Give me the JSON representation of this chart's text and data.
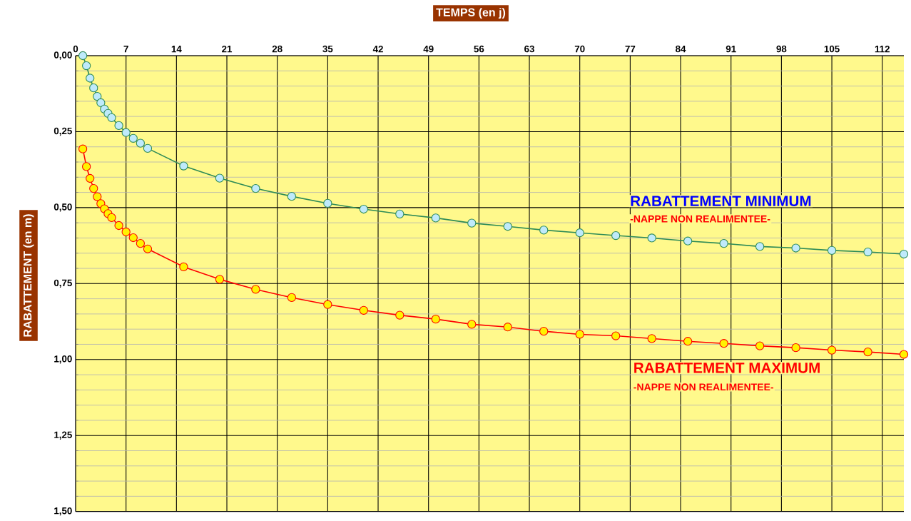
{
  "chart_data": {
    "type": "line",
    "xlabel": "TEMPS (en j)",
    "ylabel": "RABATTEMENT  (en m)",
    "xlim": [
      0,
      115
    ],
    "ylim": [
      1.5,
      0
    ],
    "xticks": [
      0,
      7,
      14,
      21,
      28,
      35,
      42,
      49,
      56,
      63,
      70,
      77,
      84,
      91,
      98,
      105,
      112
    ],
    "yticks": [
      {
        "value": 0,
        "label": "0,00"
      },
      {
        "value": 0.25,
        "label": "0,25"
      },
      {
        "value": 0.5,
        "label": "0,50"
      },
      {
        "value": 0.75,
        "label": "0,75"
      },
      {
        "value": 1.0,
        "label": "1,00"
      },
      {
        "value": 1.25,
        "label": "1,25"
      },
      {
        "value": 1.5,
        "label": "1,50"
      }
    ],
    "grid": true,
    "marker": "circle",
    "line_style": "solid",
    "x": [
      1,
      1.5,
      2,
      2.5,
      3,
      3.5,
      4,
      4.5,
      5,
      6,
      7,
      8,
      9,
      10,
      15,
      20,
      25,
      30,
      35,
      40,
      45,
      50,
      55,
      60,
      65,
      70,
      75,
      80,
      85,
      90,
      95,
      100,
      105,
      110,
      115
    ],
    "series": [
      {
        "name": "RABATTEMENT MINIMUM",
        "color": "#2e8b57",
        "values": [
          0.0,
          0.033,
          0.074,
          0.106,
          0.134,
          0.155,
          0.176,
          0.19,
          0.204,
          0.23,
          0.253,
          0.272,
          0.288,
          0.305,
          0.363,
          0.403,
          0.437,
          0.463,
          0.486,
          0.505,
          0.521,
          0.534,
          0.551,
          0.562,
          0.574,
          0.583,
          0.592,
          0.6,
          0.61,
          0.618,
          0.628,
          0.633,
          0.641,
          0.646,
          0.653
        ]
      },
      {
        "name": "RABATTEMENT MAXIMUM",
        "color": "#ff0000",
        "values": [
          0.307,
          0.365,
          0.404,
          0.437,
          0.464,
          0.487,
          0.504,
          0.52,
          0.533,
          0.559,
          0.58,
          0.599,
          0.618,
          0.636,
          0.695,
          0.736,
          0.769,
          0.796,
          0.819,
          0.838,
          0.854,
          0.867,
          0.884,
          0.893,
          0.907,
          0.917,
          0.922,
          0.931,
          0.94,
          0.947,
          0.955,
          0.961,
          0.969,
          0.975,
          0.983
        ]
      }
    ],
    "annotations": [
      "-NAPPE  NON REALIMENTEE-",
      "-NAPPE  NON REALIMENTEE-"
    ]
  }
}
